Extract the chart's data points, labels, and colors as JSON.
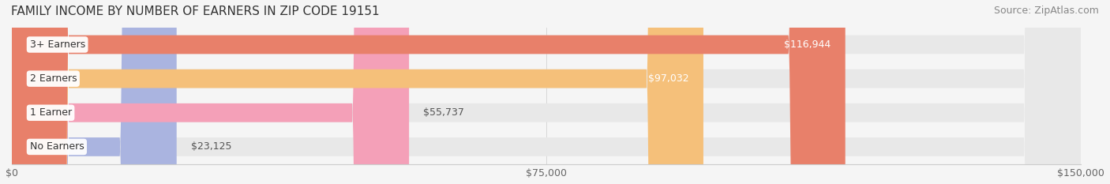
{
  "title": "FAMILY INCOME BY NUMBER OF EARNERS IN ZIP CODE 19151",
  "source": "Source: ZipAtlas.com",
  "categories": [
    "No Earners",
    "1 Earner",
    "2 Earners",
    "3+ Earners"
  ],
  "values": [
    23125,
    55737,
    97032,
    116944
  ],
  "bar_colors": [
    "#aab4e0",
    "#f4a0b8",
    "#f5c07a",
    "#e8806a"
  ],
  "bar_bg_color": "#e8e8e8",
  "label_colors": [
    "#555555",
    "#555555",
    "#ffffff",
    "#ffffff"
  ],
  "xlim": [
    0,
    150000
  ],
  "xticks": [
    0,
    75000,
    150000
  ],
  "xtick_labels": [
    "$0",
    "$75,000",
    "$150,000"
  ],
  "background_color": "#f5f5f5",
  "bar_height": 0.55,
  "title_fontsize": 11,
  "source_fontsize": 9,
  "tick_fontsize": 9,
  "label_fontsize": 9,
  "category_fontsize": 9
}
